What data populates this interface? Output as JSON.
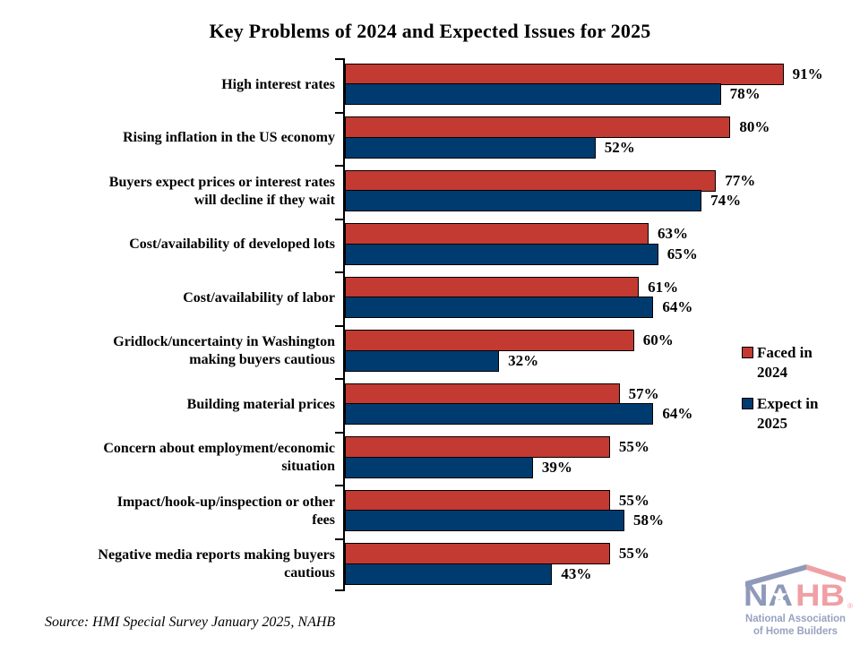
{
  "chart_data": {
    "type": "bar",
    "orientation": "horizontal",
    "title": "Key Problems of 2024 and Expected Issues for 2025",
    "categories": [
      "High interest rates",
      "Rising inflation in the US economy",
      "Buyers expect prices or interest rates will decline if they wait",
      "Cost/availability of developed lots",
      "Cost/availability of labor",
      "Gridlock/uncertainty in Washington making buyers cautious",
      "Building material prices",
      "Concern about employment/economic situation",
      "Impact/hook-up/inspection or other fees",
      "Negative media reports making buyers cautious"
    ],
    "category_lines": [
      [
        "High interest rates"
      ],
      [
        "Rising inflation in the US economy"
      ],
      [
        "Buyers expect prices or interest rates",
        "will decline if they wait"
      ],
      [
        "Cost/availability of developed lots"
      ],
      [
        "Cost/availability of labor"
      ],
      [
        "Gridlock/uncertainty in Washington",
        "making buyers cautious"
      ],
      [
        "Building material prices"
      ],
      [
        "Concern about employment/economic",
        "situation"
      ],
      [
        "Impact/hook-up/inspection or other",
        "fees"
      ],
      [
        "Negative media reports making buyers",
        "cautious"
      ]
    ],
    "series": [
      {
        "key": "faced-2024",
        "name": "Faced in 2024",
        "color": "#c23a32",
        "values": [
          91,
          80,
          77,
          63,
          61,
          60,
          57,
          55,
          55,
          55
        ]
      },
      {
        "key": "expect-2025",
        "name": "Expect in 2025",
        "color": "#003b70",
        "values": [
          78,
          52,
          74,
          65,
          64,
          32,
          64,
          39,
          58,
          43
        ]
      }
    ],
    "xlim": [
      0,
      100
    ],
    "value_suffix": "%",
    "legend_position": "right",
    "grid": false
  },
  "source": "Source: HMI Special Survey January 2025, NAHB",
  "logo": {
    "na": "NA",
    "hb": "HB",
    "reg": "®",
    "subtitle_line1": "National Association",
    "subtitle_line2": "of Home Builders",
    "navy": "#8f99b9",
    "pink": "#efa0a5",
    "subtitle_color": "#98a2c0"
  }
}
